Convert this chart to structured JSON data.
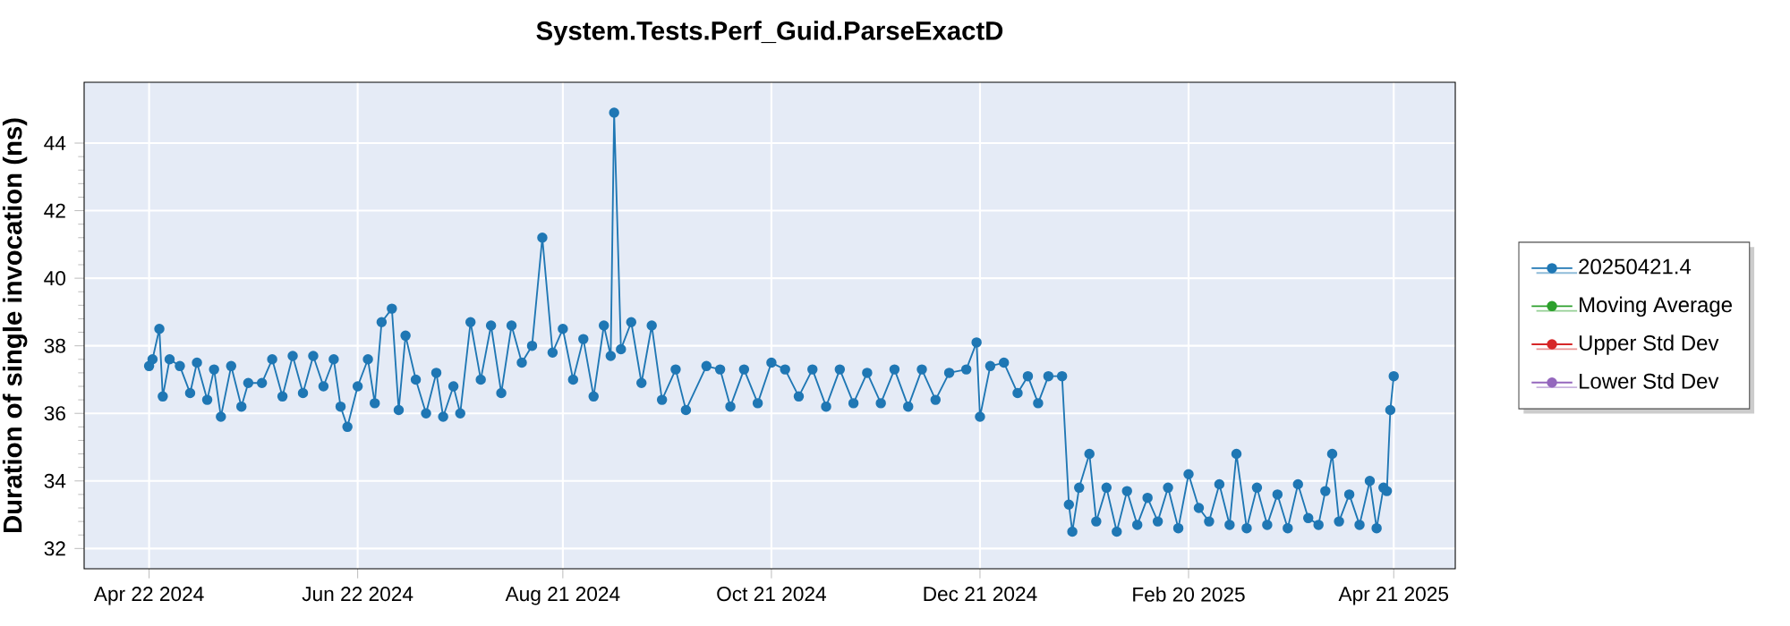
{
  "chart_data": {
    "type": "line",
    "title": "System.Tests.Perf_Guid.ParseExactD",
    "ylabel": "Duration of single invocation (ns)",
    "xlim": [
      "2024-04-03",
      "2025-05-09"
    ],
    "ylim": [
      31.4,
      45.8
    ],
    "xticks": [
      {
        "value": "2024-04-22",
        "label": "Apr 22 2024"
      },
      {
        "value": "2024-06-22",
        "label": "Jun 22 2024"
      },
      {
        "value": "2024-08-21",
        "label": "Aug 21 2024"
      },
      {
        "value": "2024-10-21",
        "label": "Oct 21 2024"
      },
      {
        "value": "2024-12-21",
        "label": "Dec 21 2024"
      },
      {
        "value": "2025-02-20",
        "label": "Feb 20 2025"
      },
      {
        "value": "2025-04-21",
        "label": "Apr 21 2025"
      }
    ],
    "yticks": [
      32,
      34,
      36,
      38,
      40,
      42,
      44
    ],
    "grid": true,
    "legend": "right",
    "marker": "circle",
    "line_style": "solid",
    "x": [
      "2024-04-22",
      "2024-04-23",
      "2024-04-25",
      "2024-04-26",
      "2024-04-28",
      "2024-05-01",
      "2024-05-04",
      "2024-05-06",
      "2024-05-09",
      "2024-05-11",
      "2024-05-13",
      "2024-05-16",
      "2024-05-19",
      "2024-05-21",
      "2024-05-25",
      "2024-05-28",
      "2024-05-31",
      "2024-06-03",
      "2024-06-06",
      "2024-06-09",
      "2024-06-12",
      "2024-06-15",
      "2024-06-17",
      "2024-06-19",
      "2024-06-22",
      "2024-06-25",
      "2024-06-27",
      "2024-06-29",
      "2024-07-02",
      "2024-07-04",
      "2024-07-06",
      "2024-07-09",
      "2024-07-12",
      "2024-07-15",
      "2024-07-17",
      "2024-07-20",
      "2024-07-22",
      "2024-07-25",
      "2024-07-28",
      "2024-07-31",
      "2024-08-03",
      "2024-08-06",
      "2024-08-09",
      "2024-08-12",
      "2024-08-15",
      "2024-08-18",
      "2024-08-21",
      "2024-08-24",
      "2024-08-27",
      "2024-08-30",
      "2024-09-02",
      "2024-09-04",
      "2024-09-05",
      "2024-09-07",
      "2024-09-10",
      "2024-09-13",
      "2024-09-16",
      "2024-09-19",
      "2024-09-23",
      "2024-09-26",
      "2024-10-02",
      "2024-10-06",
      "2024-10-09",
      "2024-10-13",
      "2024-10-17",
      "2024-10-21",
      "2024-10-25",
      "2024-10-29",
      "2024-11-02",
      "2024-11-06",
      "2024-11-10",
      "2024-11-14",
      "2024-11-18",
      "2024-11-22",
      "2024-11-26",
      "2024-11-30",
      "2024-12-04",
      "2024-12-08",
      "2024-12-12",
      "2024-12-17",
      "2024-12-20",
      "2024-12-21",
      "2024-12-24",
      "2024-12-28",
      "2025-01-01",
      "2025-01-04",
      "2025-01-07",
      "2025-01-10",
      "2025-01-14",
      "2025-01-16",
      "2025-01-17",
      "2025-01-19",
      "2025-01-22",
      "2025-01-24",
      "2025-01-27",
      "2025-01-30",
      "2025-02-02",
      "2025-02-05",
      "2025-02-08",
      "2025-02-11",
      "2025-02-14",
      "2025-02-17",
      "2025-02-20",
      "2025-02-23",
      "2025-02-26",
      "2025-03-01",
      "2025-03-04",
      "2025-03-06",
      "2025-03-09",
      "2025-03-12",
      "2025-03-15",
      "2025-03-18",
      "2025-03-21",
      "2025-03-24",
      "2025-03-27",
      "2025-03-30",
      "2025-04-01",
      "2025-04-03",
      "2025-04-05",
      "2025-04-08",
      "2025-04-11",
      "2025-04-14",
      "2025-04-16",
      "2025-04-18",
      "2025-04-19",
      "2025-04-20",
      "2025-04-21"
    ],
    "series": [
      {
        "name": "20250421.4",
        "color": "#1f77b4",
        "values": [
          37.4,
          37.6,
          38.5,
          36.5,
          37.6,
          37.4,
          36.6,
          37.5,
          36.4,
          37.3,
          35.9,
          37.4,
          36.2,
          36.9,
          36.9,
          37.6,
          36.5,
          37.7,
          36.6,
          37.7,
          36.8,
          37.6,
          36.2,
          35.6,
          36.8,
          37.6,
          36.3,
          38.7,
          39.1,
          36.1,
          38.3,
          37.0,
          36.0,
          37.2,
          35.9,
          36.8,
          36.0,
          38.7,
          37.0,
          38.6,
          36.6,
          38.6,
          37.5,
          38.0,
          41.2,
          37.8,
          38.5,
          37.0,
          38.2,
          36.5,
          38.6,
          37.7,
          44.9,
          37.9,
          38.7,
          36.9,
          38.6,
          36.4,
          37.3,
          36.1,
          37.4,
          37.3,
          36.2,
          37.3,
          36.3,
          37.5,
          37.3,
          36.5,
          37.3,
          36.2,
          37.3,
          36.3,
          37.2,
          36.3,
          37.3,
          36.2,
          37.3,
          36.4,
          37.2,
          37.3,
          38.1,
          35.9,
          37.4,
          37.5,
          36.6,
          37.1,
          36.3,
          37.1,
          37.1,
          33.3,
          32.5,
          33.8,
          34.8,
          32.8,
          33.8,
          32.5,
          33.7,
          32.7,
          33.5,
          32.8,
          33.8,
          32.6,
          34.2,
          33.2,
          32.8,
          33.9,
          32.7,
          34.8,
          32.6,
          33.8,
          32.7,
          33.6,
          32.6,
          33.9,
          32.9,
          32.7,
          33.7,
          34.8,
          32.8,
          33.6,
          32.7,
          34.0,
          32.6,
          33.8,
          33.7,
          36.1,
          37.1
        ]
      },
      {
        "name": "Moving Average",
        "color": "#2ca02c",
        "values": [
          null,
          null,
          null,
          null,
          null,
          null,
          null,
          null,
          null,
          null,
          null,
          null,
          null,
          null,
          null,
          null,
          null,
          null,
          null,
          null,
          null,
          null,
          null,
          null,
          null,
          null,
          null,
          null,
          null,
          null,
          null,
          null,
          null,
          null,
          null,
          null,
          null,
          null,
          null,
          null,
          null,
          null,
          null,
          null,
          null,
          null,
          null,
          null,
          null,
          null,
          null,
          null,
          null,
          null,
          null,
          null,
          null,
          null,
          null,
          null,
          null,
          null,
          null,
          null,
          null,
          null,
          null,
          null,
          null,
          null,
          null,
          null,
          null,
          null,
          null,
          null,
          null,
          null,
          null,
          null,
          null,
          null,
          null,
          null,
          null,
          null,
          null,
          null,
          null,
          null,
          null,
          null,
          null,
          null,
          null,
          null,
          null,
          null,
          null,
          null,
          null,
          null,
          null,
          null,
          null,
          null,
          null,
          null,
          null,
          null,
          null,
          null,
          null,
          null,
          null,
          null,
          null,
          null,
          null,
          null,
          null,
          null,
          null,
          null,
          null,
          null,
          null
        ]
      },
      {
        "name": "Upper Std Dev",
        "color": "#d62728",
        "values": [
          null,
          null,
          null,
          null,
          null,
          null,
          null,
          null,
          null,
          null,
          null,
          null,
          null,
          null,
          null,
          null,
          null,
          null,
          null,
          null,
          null,
          null,
          null,
          null,
          null,
          null,
          null,
          null,
          null,
          null,
          null,
          null,
          null,
          null,
          null,
          null,
          null,
          null,
          null,
          null,
          null,
          null,
          null,
          null,
          null,
          null,
          null,
          null,
          null,
          null,
          null,
          null,
          null,
          null,
          null,
          null,
          null,
          null,
          null,
          null,
          null,
          null,
          null,
          null,
          null,
          null,
          null,
          null,
          null,
          null,
          null,
          null,
          null,
          null,
          null,
          null,
          null,
          null,
          null,
          null,
          null,
          null,
          null,
          null,
          null,
          null,
          null,
          null,
          null,
          null,
          null,
          null,
          null,
          null,
          null,
          null,
          null,
          null,
          null,
          null,
          null,
          null,
          null,
          null,
          null,
          null,
          null,
          null,
          null,
          null,
          null,
          null,
          null,
          null,
          null,
          null,
          null,
          null,
          null,
          null,
          null,
          null,
          null,
          null,
          null,
          null,
          null
        ]
      },
      {
        "name": "Lower Std Dev",
        "color": "#9467bd",
        "values": [
          null,
          null,
          null,
          null,
          null,
          null,
          null,
          null,
          null,
          null,
          null,
          null,
          null,
          null,
          null,
          null,
          null,
          null,
          null,
          null,
          null,
          null,
          null,
          null,
          null,
          null,
          null,
          null,
          null,
          null,
          null,
          null,
          null,
          null,
          null,
          null,
          null,
          null,
          null,
          null,
          null,
          null,
          null,
          null,
          null,
          null,
          null,
          null,
          null,
          null,
          null,
          null,
          null,
          null,
          null,
          null,
          null,
          null,
          null,
          null,
          null,
          null,
          null,
          null,
          null,
          null,
          null,
          null,
          null,
          null,
          null,
          null,
          null,
          null,
          null,
          null,
          null,
          null,
          null,
          null,
          null,
          null,
          null,
          null,
          null,
          null,
          null,
          null,
          null,
          null,
          null,
          null,
          null,
          null,
          null,
          null,
          null,
          null,
          null,
          null,
          null,
          null,
          null,
          null,
          null,
          null,
          null,
          null,
          null,
          null,
          null,
          null,
          null,
          null,
          null,
          null,
          null,
          null,
          null,
          null,
          null,
          null,
          null,
          null,
          null,
          null,
          null
        ]
      }
    ]
  }
}
